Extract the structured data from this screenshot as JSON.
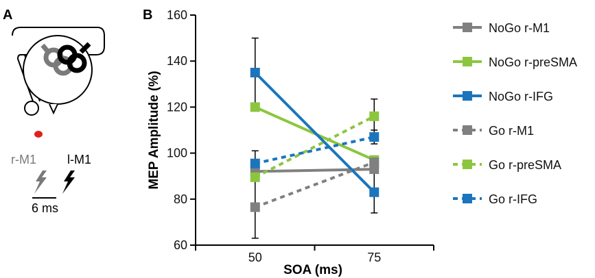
{
  "panel_a": {
    "letter": "A",
    "label_r": "r-M1",
    "label_l": "l-M1",
    "label_ms": "6 ms",
    "colors": {
      "gray": "#7a7a7a",
      "black": "#000000",
      "red": "#e0211b"
    }
  },
  "panel_b": {
    "letter": "B"
  },
  "chart_data": {
    "type": "line",
    "title": "",
    "xlabel": "SOA (ms)",
    "ylabel": "MEP Amplitude (%)",
    "categories": [
      "50",
      "75"
    ],
    "ylim": [
      60,
      160
    ],
    "yticks": [
      "60",
      "80",
      "100",
      "120",
      "140",
      "160"
    ],
    "grid": false,
    "legend_position": "right",
    "series": [
      {
        "name": "NoGo r-M1",
        "color": "#808080",
        "dashed": false,
        "values": [
          92,
          93
        ],
        "errors": [
          null,
          null
        ]
      },
      {
        "name": "NoGo r-preSMA",
        "color": "#8cc63f",
        "dashed": false,
        "values": [
          120,
          97
        ],
        "errors": [
          null,
          null
        ]
      },
      {
        "name": "NoGo r-IFG",
        "color": "#1b75bc",
        "dashed": false,
        "values": [
          135,
          83
        ],
        "errors": [
          15,
          9
        ]
      },
      {
        "name": "Go r-M1",
        "color": "#808080",
        "dashed": true,
        "values": [
          76.5,
          96
        ],
        "errors": [
          13.5,
          null
        ]
      },
      {
        "name": "Go r-preSMA",
        "color": "#8cc63f",
        "dashed": true,
        "values": [
          89.5,
          116
        ],
        "errors": [
          null,
          7.5
        ]
      },
      {
        "name": "Go r-IFG",
        "color": "#1b75bc",
        "dashed": true,
        "values": [
          95.5,
          107
        ],
        "errors": [
          5.5,
          3
        ]
      }
    ]
  }
}
